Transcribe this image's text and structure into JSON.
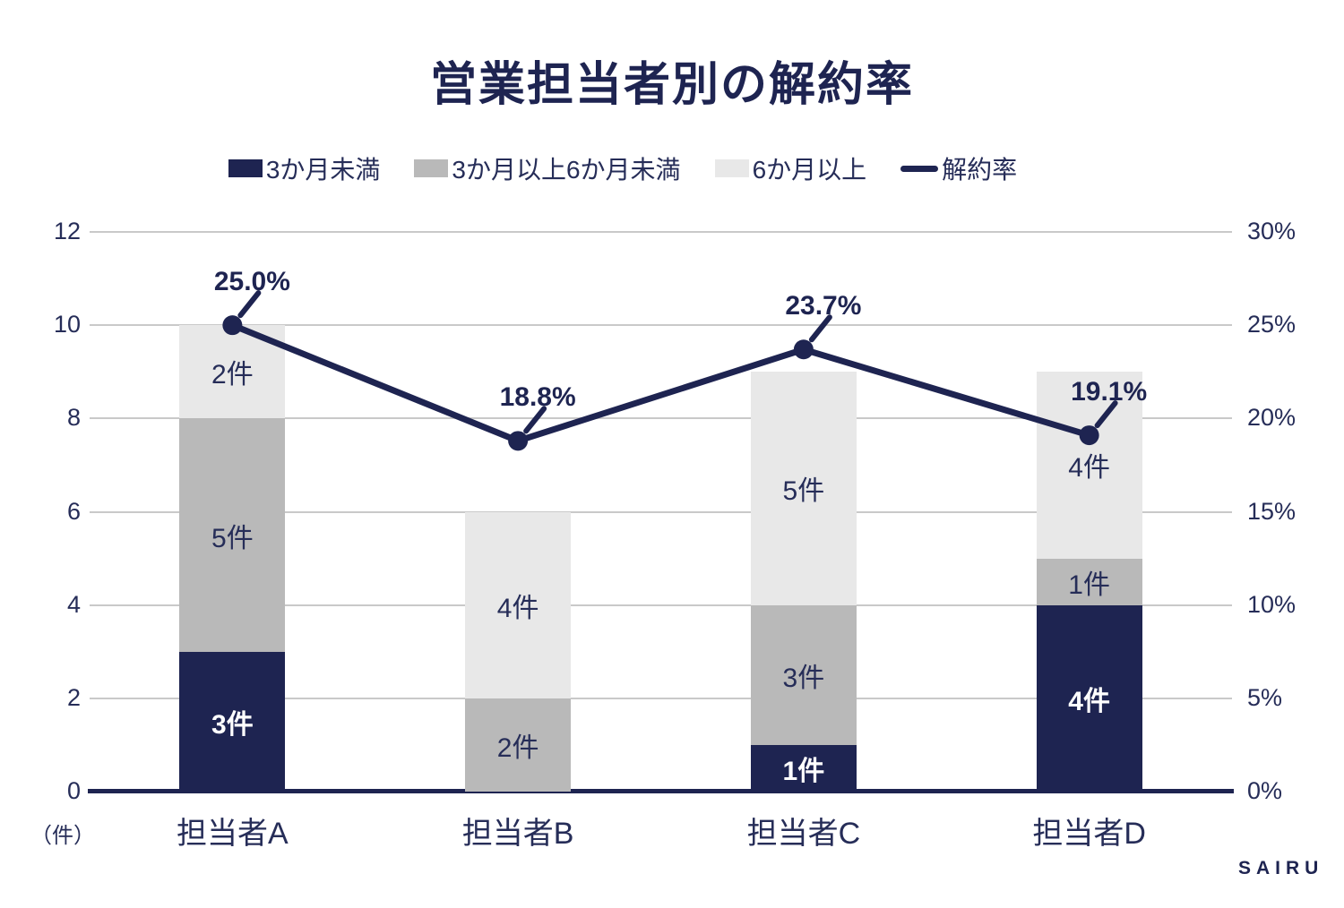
{
  "title": "営業担当者別の解約率",
  "watermark": "SAIRU",
  "colors": {
    "navy": "#1e2451",
    "gray": "#b9b9b9",
    "light_gray": "#e8e8e8",
    "gridline": "#c9c9c9",
    "text": "#262d58"
  },
  "legend": {
    "items": [
      {
        "label": "3か月未満",
        "swatch": "square",
        "color": "#1e2451"
      },
      {
        "label": "3か月以上6か月未満",
        "swatch": "square",
        "color": "#b9b9b9"
      },
      {
        "label": "6か月以上",
        "swatch": "square",
        "color": "#e8e8e8"
      },
      {
        "label": "解約率",
        "swatch": "line",
        "color": "#1e2451"
      }
    ]
  },
  "chart_data": {
    "type": "bar",
    "subtype": "stacked-bars-with-line-overlay",
    "title": "営業担当者別の解約率",
    "categories": [
      "担当者A",
      "担当者B",
      "担当者C",
      "担当者D"
    ],
    "series": [
      {
        "name": "3か月未満",
        "color": "#1e2451",
        "values": [
          3,
          0,
          1,
          4
        ]
      },
      {
        "name": "3か月以上6か月未満",
        "color": "#b9b9b9",
        "values": [
          5,
          2,
          3,
          1
        ]
      },
      {
        "name": "6か月以上",
        "color": "#e8e8e8",
        "values": [
          2,
          4,
          5,
          4
        ]
      }
    ],
    "line_series": {
      "name": "解約率",
      "color": "#1e2451",
      "values": [
        25.0,
        18.8,
        23.7,
        19.1
      ]
    },
    "bars": [
      {
        "category": "担当者A",
        "churn_rate": 25.0,
        "churn_label": "25.0%",
        "segments": [
          {
            "series": "3か月未満",
            "value": 3,
            "label": "3件",
            "color": "#1e2451"
          },
          {
            "series": "3か月以上6か月未満",
            "value": 5,
            "label": "5件",
            "color": "#b9b9b9"
          },
          {
            "series": "6か月以上",
            "value": 2,
            "label": "2件",
            "color": "#e8e8e8"
          }
        ]
      },
      {
        "category": "担当者B",
        "churn_rate": 18.8,
        "churn_label": "18.8%",
        "segments": [
          {
            "series": "3か月以上6か月未満",
            "value": 2,
            "label": "2件",
            "color": "#b9b9b9"
          },
          {
            "series": "6か月以上",
            "value": 4,
            "label": "4件",
            "color": "#e8e8e8"
          }
        ]
      },
      {
        "category": "担当者C",
        "churn_rate": 23.7,
        "churn_label": "23.7%",
        "segments": [
          {
            "series": "3か月未満",
            "value": 1,
            "label": "1件",
            "color": "#1e2451"
          },
          {
            "series": "3か月以上6か月未満",
            "value": 3,
            "label": "3件",
            "color": "#b9b9b9"
          },
          {
            "series": "6か月以上",
            "value": 5,
            "label": "5件",
            "color": "#e8e8e8"
          }
        ]
      },
      {
        "category": "担当者D",
        "churn_rate": 19.1,
        "churn_label": "19.1%",
        "segments": [
          {
            "series": "3か月未満",
            "value": 4,
            "label": "4件",
            "color": "#1e2451"
          },
          {
            "series": "3か月以上6か月未満",
            "value": 1,
            "label": "1件",
            "color": "#b9b9b9"
          },
          {
            "series": "6か月以上",
            "value": 4,
            "label": "4件",
            "color": "#e8e8e8"
          }
        ]
      }
    ],
    "left_axis": {
      "ticks": [
        0,
        2,
        4,
        6,
        8,
        10,
        12
      ],
      "max": 12,
      "unit_label": "（件）"
    },
    "right_axis": {
      "max": 30,
      "ticks": [
        {
          "label": "0%",
          "value": 0
        },
        {
          "label": "5%",
          "value": 5
        },
        {
          "label": "10%",
          "value": 10
        },
        {
          "label": "15%",
          "value": 15
        },
        {
          "label": "20%",
          "value": 20
        },
        {
          "label": "25%",
          "value": 25
        },
        {
          "label": "30%",
          "value": 30
        }
      ]
    },
    "grid": "horizontal",
    "legend_position": "top"
  }
}
